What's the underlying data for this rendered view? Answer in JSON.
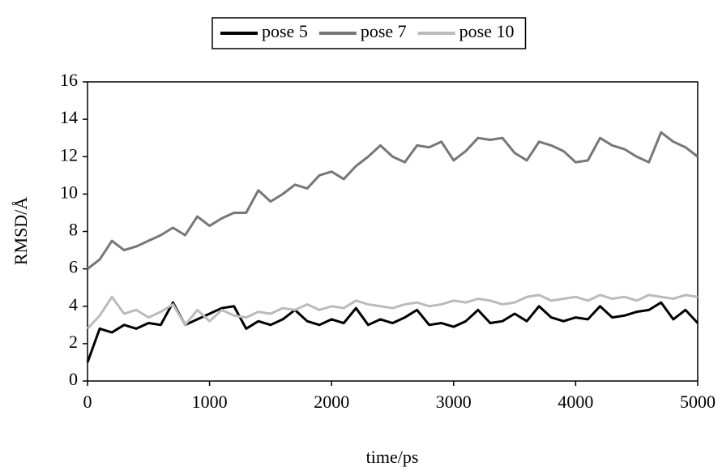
{
  "chart_data": {
    "type": "line",
    "xlabel": "time/ps",
    "ylabel": "RMSD/Å",
    "x": [
      0,
      100,
      200,
      300,
      400,
      500,
      600,
      700,
      800,
      900,
      1000,
      1100,
      1200,
      1300,
      1400,
      1500,
      1600,
      1700,
      1800,
      1900,
      2000,
      2100,
      2200,
      2300,
      2400,
      2500,
      2600,
      2700,
      2800,
      2900,
      3000,
      3100,
      3200,
      3300,
      3400,
      3500,
      3600,
      3700,
      3800,
      3900,
      4000,
      4100,
      4200,
      4300,
      4400,
      4500,
      4600,
      4700,
      4800,
      4900,
      5000
    ],
    "series": [
      {
        "name": "pose 5",
        "color": "#000000",
        "values": [
          1.0,
          2.8,
          2.6,
          3.0,
          2.8,
          3.1,
          3.0,
          4.2,
          3.0,
          3.3,
          3.6,
          3.9,
          4.0,
          2.8,
          3.2,
          3.0,
          3.3,
          3.8,
          3.2,
          3.0,
          3.3,
          3.1,
          3.9,
          3.0,
          3.3,
          3.1,
          3.4,
          3.8,
          3.0,
          3.1,
          2.9,
          3.2,
          3.8,
          3.1,
          3.2,
          3.6,
          3.2,
          4.0,
          3.4,
          3.2,
          3.4,
          3.3,
          4.0,
          3.4,
          3.5,
          3.7,
          3.8,
          4.2,
          3.3,
          3.8,
          3.1
        ]
      },
      {
        "name": "pose 7",
        "color": "#777777",
        "values": [
          6.0,
          6.5,
          7.5,
          7.0,
          7.2,
          7.5,
          7.8,
          8.2,
          7.8,
          8.8,
          8.3,
          8.7,
          9.0,
          9.0,
          10.2,
          9.6,
          10.0,
          10.5,
          10.3,
          11.0,
          11.2,
          10.8,
          11.5,
          12.0,
          12.6,
          12.0,
          11.7,
          12.6,
          12.5,
          12.8,
          11.8,
          12.3,
          13.0,
          12.9,
          13.0,
          12.2,
          11.8,
          12.8,
          12.6,
          12.3,
          11.7,
          11.8,
          13.0,
          12.6,
          12.4,
          12.0,
          11.7,
          13.3,
          12.8,
          12.5,
          12.0
        ]
      },
      {
        "name": "pose 10",
        "color": "#bbbbbb",
        "values": [
          2.8,
          3.5,
          4.5,
          3.6,
          3.8,
          3.4,
          3.7,
          4.1,
          3.0,
          3.8,
          3.2,
          3.8,
          3.5,
          3.4,
          3.7,
          3.6,
          3.9,
          3.8,
          4.1,
          3.8,
          4.0,
          3.9,
          4.3,
          4.1,
          4.0,
          3.9,
          4.1,
          4.2,
          4.0,
          4.1,
          4.3,
          4.2,
          4.4,
          4.3,
          4.1,
          4.2,
          4.5,
          4.6,
          4.3,
          4.4,
          4.5,
          4.3,
          4.6,
          4.4,
          4.5,
          4.3,
          4.6,
          4.5,
          4.4,
          4.6,
          4.5
        ]
      }
    ],
    "xlim": [
      0,
      5000
    ],
    "xticks": [
      0,
      1000,
      2000,
      3000,
      4000,
      5000
    ],
    "ylim": [
      0,
      16
    ],
    "yticks": [
      0,
      2,
      4,
      6,
      8,
      10,
      12,
      14,
      16
    ],
    "grid": false,
    "legend": "top"
  }
}
